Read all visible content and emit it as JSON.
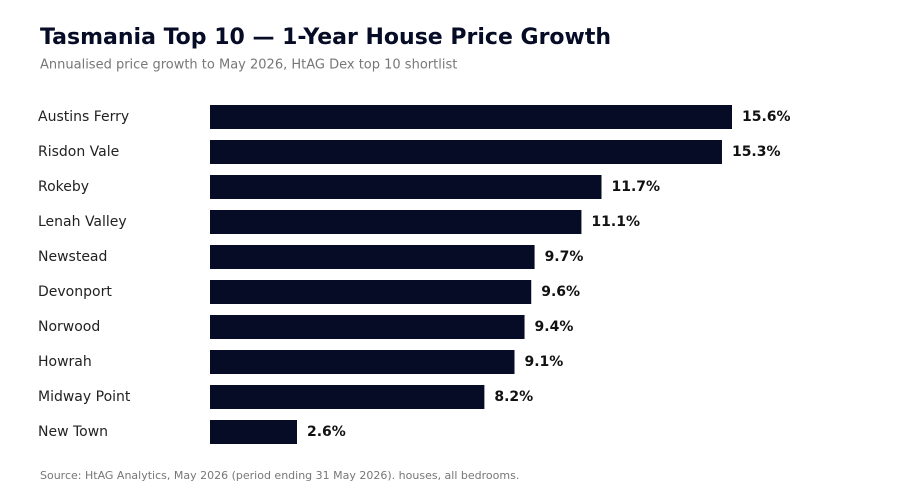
{
  "chart_data": {
    "type": "bar",
    "orientation": "horizontal",
    "title": "Tasmania Top 10 — 1-Year House Price Growth",
    "subtitle": "Annualised price growth to May 2026, HtAG Dex top 10 shortlist",
    "source": "Source: HtAG Analytics, May 2026 (period ending 31 May 2026). houses, all bedrooms.",
    "categories": [
      "Austins Ferry",
      "Risdon Vale",
      "Rokeby",
      "Lenah Valley",
      "Newstead",
      "Devonport",
      "Norwood",
      "Howrah",
      "Midway Point",
      "New Town"
    ],
    "values": [
      15.6,
      15.3,
      11.7,
      11.1,
      9.7,
      9.6,
      9.4,
      9.1,
      8.2,
      2.6
    ],
    "value_labels": [
      "15.6%",
      "15.3%",
      "11.7%",
      "11.1%",
      "9.7%",
      "9.6%",
      "9.4%",
      "9.1%",
      "8.2%",
      "2.6%"
    ],
    "color": "#060b26"
  }
}
